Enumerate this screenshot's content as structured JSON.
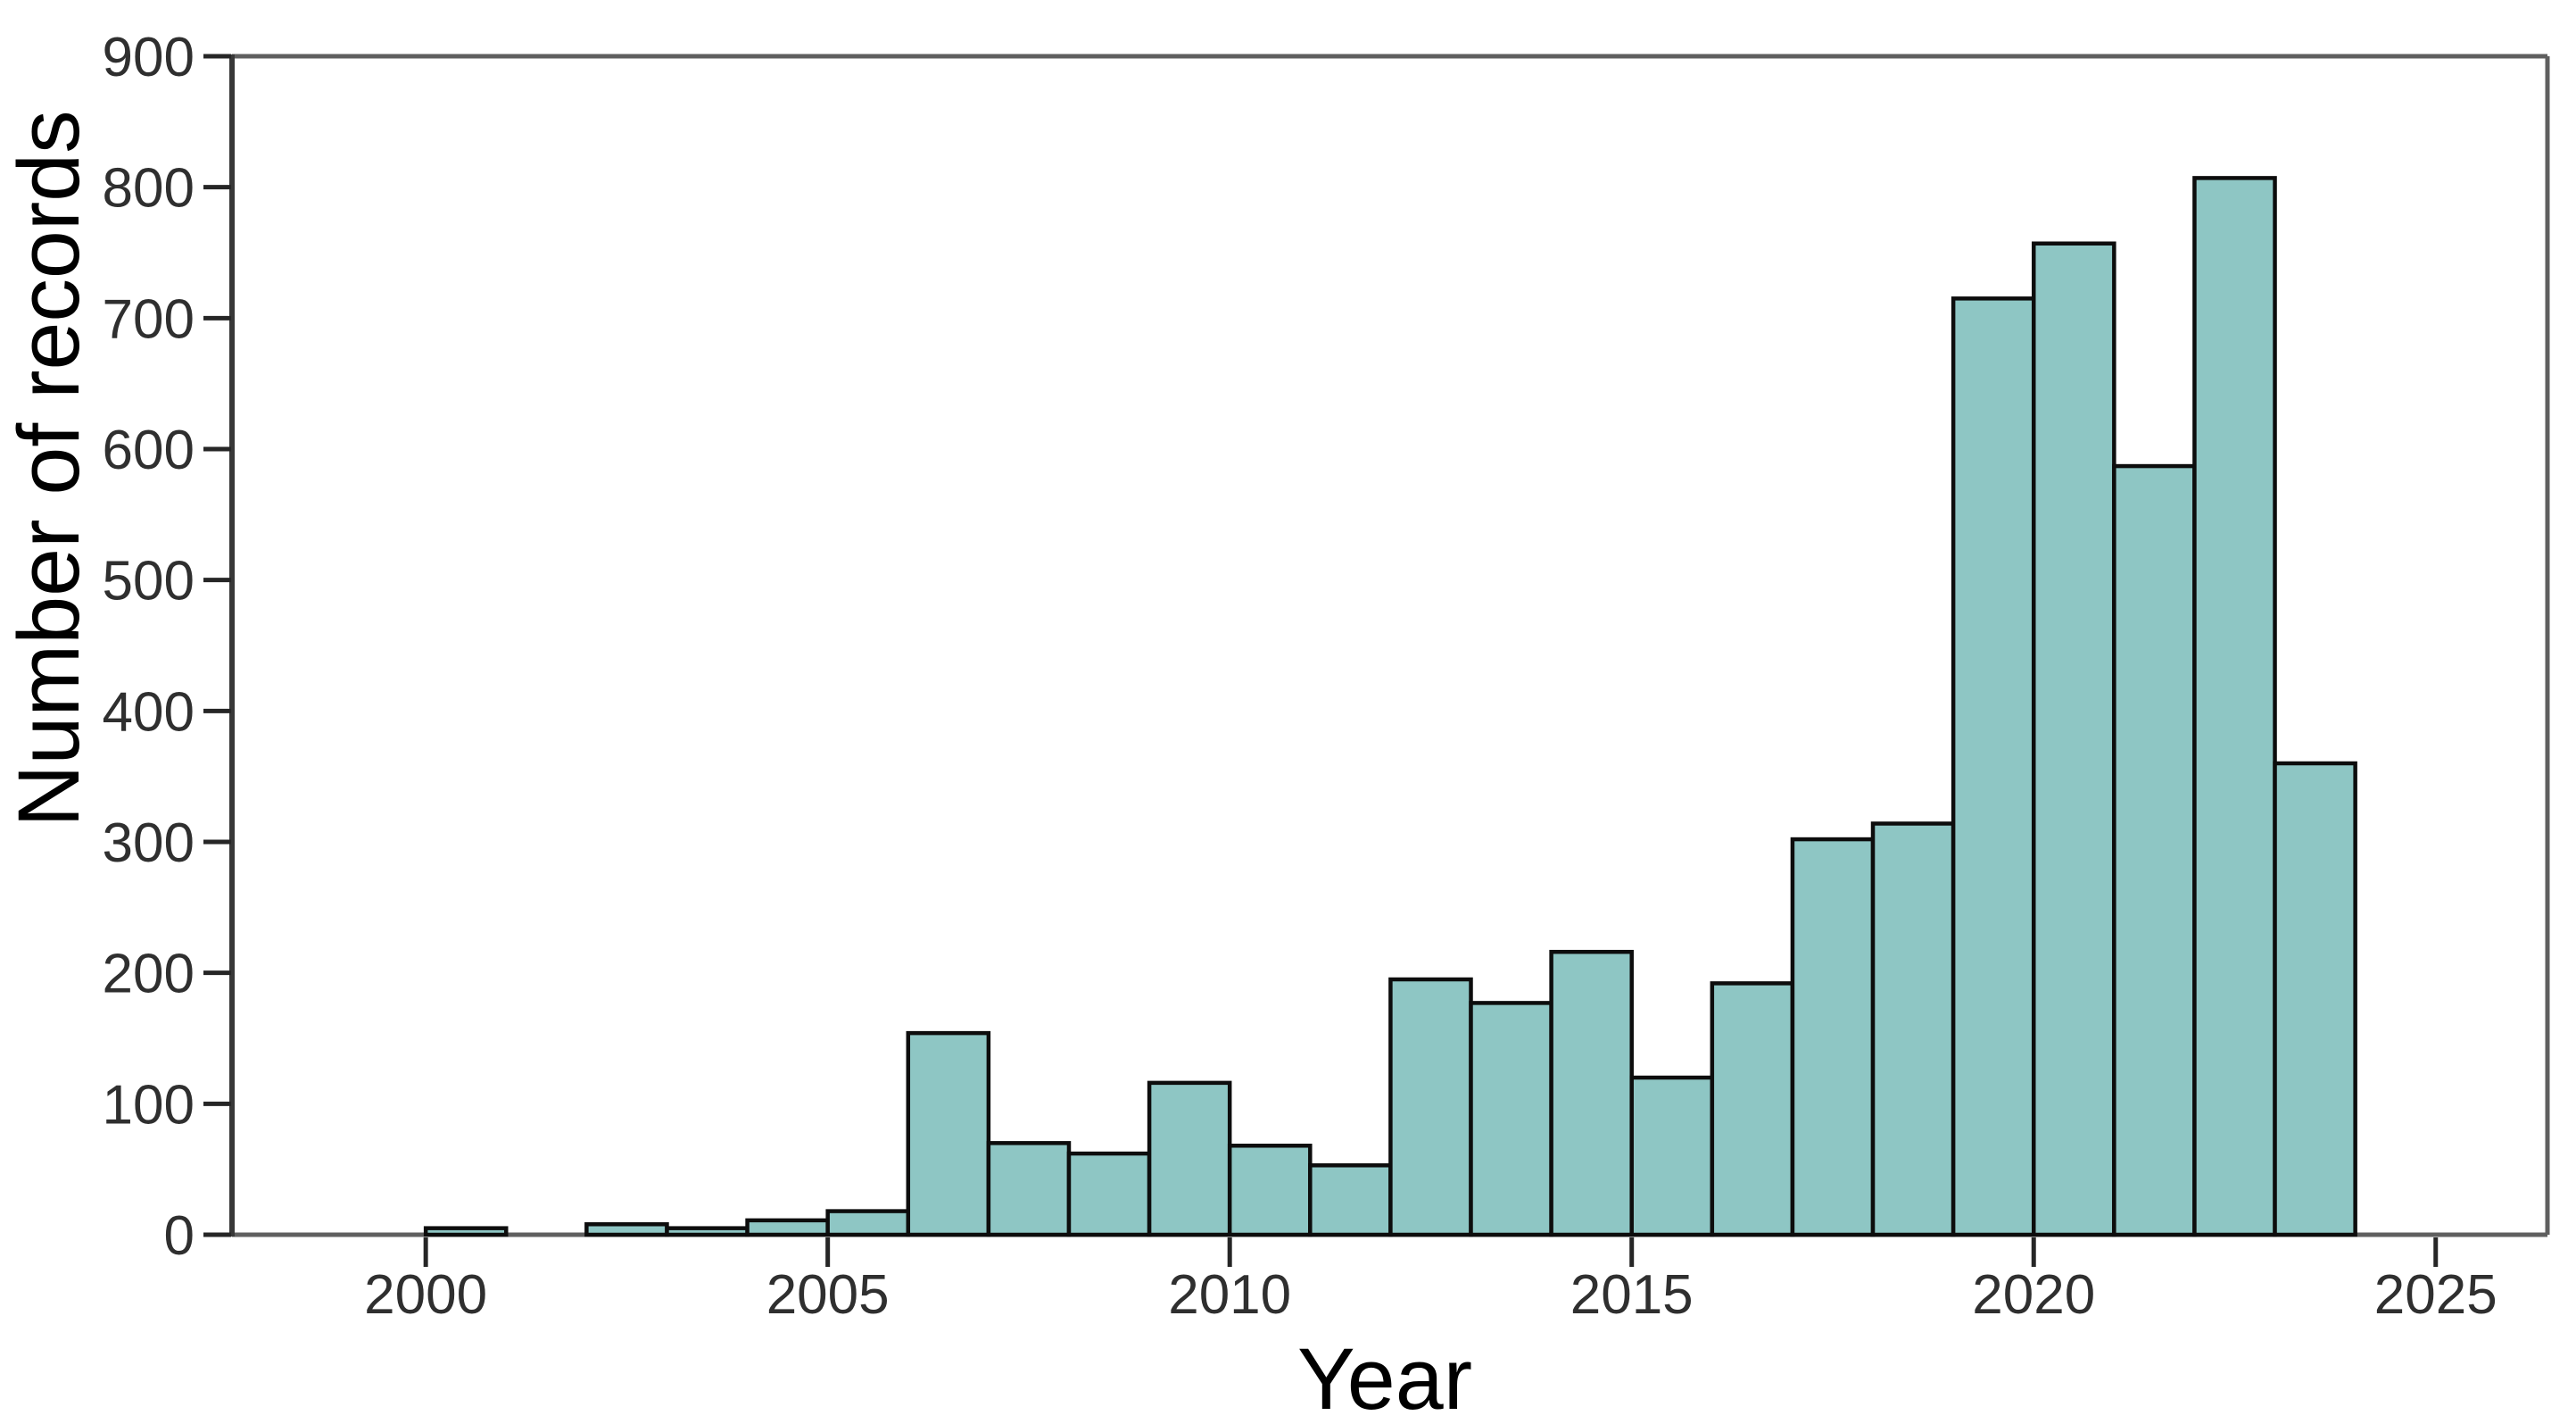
{
  "figure": {
    "background": "#ffffff"
  },
  "chart_data": {
    "type": "bar",
    "subtype": "histogram",
    "title": "",
    "xlabel": "Year",
    "ylabel": "Number of records",
    "bin_width_years": 1,
    "bins": [
      {
        "year": 2000,
        "count": 5
      },
      {
        "year": 2001,
        "count": 0
      },
      {
        "year": 2002,
        "count": 8
      },
      {
        "year": 2003,
        "count": 5
      },
      {
        "year": 2004,
        "count": 11
      },
      {
        "year": 2005,
        "count": 18
      },
      {
        "year": 2006,
        "count": 154
      },
      {
        "year": 2007,
        "count": 70
      },
      {
        "year": 2008,
        "count": 62
      },
      {
        "year": 2009,
        "count": 116
      },
      {
        "year": 2010,
        "count": 68
      },
      {
        "year": 2011,
        "count": 53
      },
      {
        "year": 2012,
        "count": 195
      },
      {
        "year": 2013,
        "count": 177
      },
      {
        "year": 2014,
        "count": 216
      },
      {
        "year": 2015,
        "count": 120
      },
      {
        "year": 2016,
        "count": 192
      },
      {
        "year": 2017,
        "count": 302
      },
      {
        "year": 2018,
        "count": 314
      },
      {
        "year": 2019,
        "count": 715
      },
      {
        "year": 2020,
        "count": 757
      },
      {
        "year": 2021,
        "count": 587
      },
      {
        "year": 2022,
        "count": 807
      },
      {
        "year": 2023,
        "count": 360
      }
    ],
    "xlim": [
      1997.59,
      2026.39
    ],
    "ylim": [
      0,
      900
    ],
    "xticks": [
      2000,
      2005,
      2010,
      2015,
      2020,
      2025
    ],
    "yticks": [
      0,
      100,
      200,
      300,
      400,
      500,
      600,
      700,
      800,
      900
    ],
    "grid": false,
    "legend": null,
    "colors": {
      "bar_fill": "#8ec6c4",
      "bar_stroke": "#0d0d0d",
      "box_spine": "#5f5f5f",
      "left_spine": "#383838",
      "tick_mark": "#262626",
      "tick_label": "#2f2f2f",
      "axis_label": "#000000"
    }
  }
}
